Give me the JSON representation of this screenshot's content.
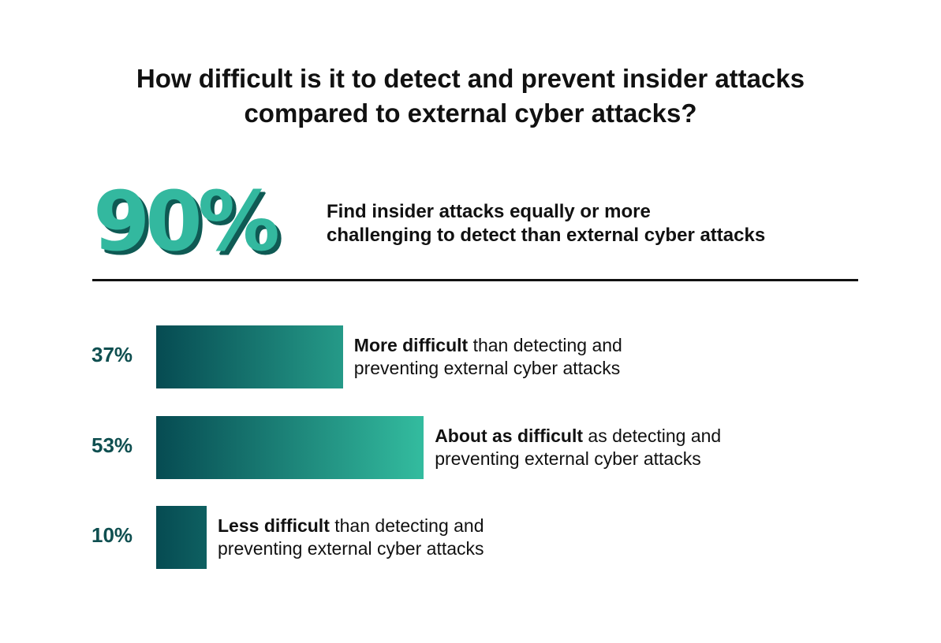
{
  "chart_data": {
    "type": "bar",
    "orientation": "horizontal",
    "title_lines": [
      "How difficult is it to detect and prevent insider attacks",
      "compared to external cyber attacks?"
    ],
    "headline": {
      "value_label": "90%",
      "value": 90,
      "description_lines": [
        "Find insider attacks equally or more",
        "challenging to detect than external cyber attacks"
      ]
    },
    "categories": [
      "More difficult",
      "About as difficult",
      "Less difficult"
    ],
    "values": [
      37,
      53,
      10
    ],
    "value_labels": [
      "37%",
      "53%",
      "10%"
    ],
    "descriptions": [
      {
        "bold": "More difficult",
        "rest": " than detecting and",
        "line2": "preventing external cyber attacks"
      },
      {
        "bold": "About as difficult",
        "rest": " as detecting and",
        "line2": "preventing external cyber attacks"
      },
      {
        "bold": "Less difficult",
        "rest": " than detecting and",
        "line2": "preventing external cyber attacks"
      }
    ],
    "xlim": [
      0,
      100
    ],
    "grid": false,
    "colors": {
      "gradient_start": "#064b52",
      "gradient_end": "#33bc9f",
      "accent": "#33b89f",
      "label": "#0f4f50"
    }
  }
}
